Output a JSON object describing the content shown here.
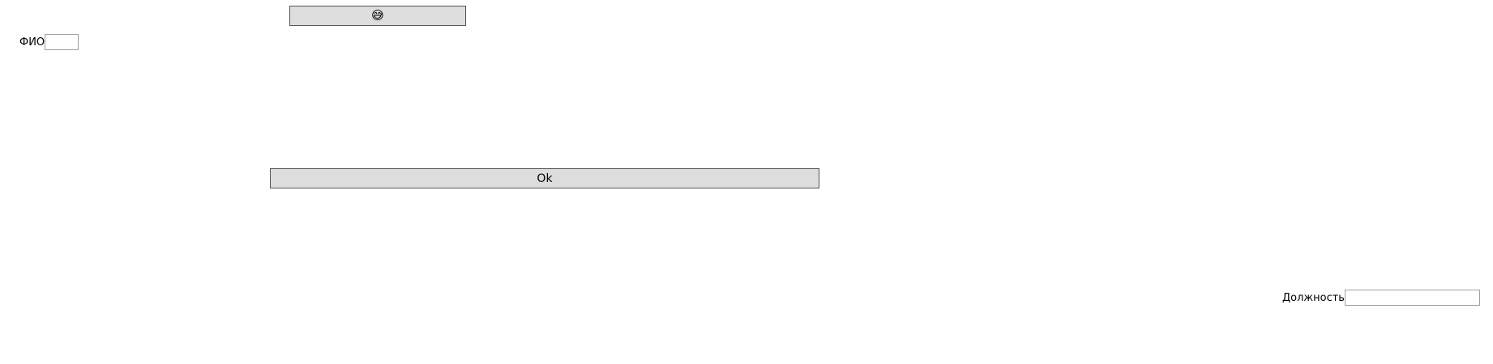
{
  "emoji_button": {
    "icon": "grinning-sweat-face-icon",
    "glyph": "😅"
  },
  "fio_field": {
    "label": "ФИО",
    "value": "",
    "placeholder": ""
  },
  "ok_button": {
    "label": "Ok"
  },
  "position_field": {
    "label": "Должность",
    "value": "",
    "placeholder": ""
  },
  "colors": {
    "button_bg": "#dddddd",
    "button_border": "#555555",
    "input_border": "#a0a0a0",
    "background": "#ffffff"
  }
}
